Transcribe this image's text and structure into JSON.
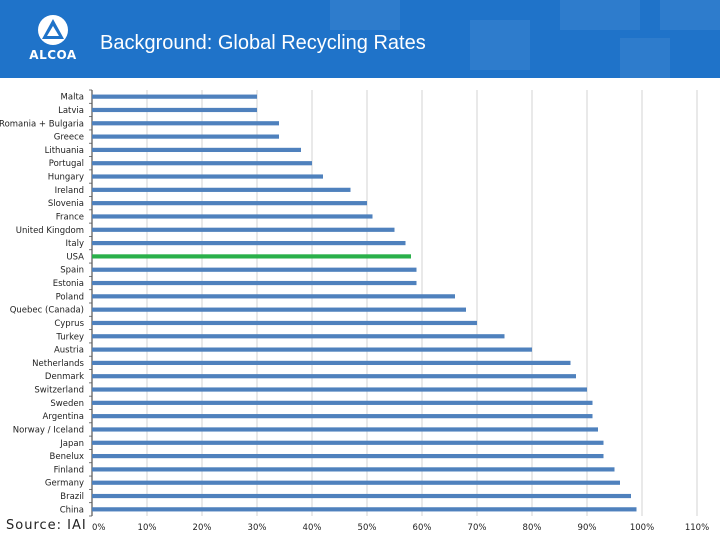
{
  "header": {
    "title": "Background:  Global Recycling Rates",
    "logo_text": "ALCOA",
    "background_color": "#1f73c9"
  },
  "footer": {
    "source_label": "Source: IAI"
  },
  "chart_data": {
    "type": "bar",
    "orientation": "horizontal",
    "categories": [
      "Malta",
      "Latvia",
      "Romania + Bulgaria",
      "Greece",
      "Lithuania",
      "Portugal",
      "Hungary",
      "Ireland",
      "Slovenia",
      "France",
      "United Kingdom",
      "Italy",
      "USA",
      "Spain",
      "Estonia",
      "Poland",
      "Quebec (Canada)",
      "Cyprus",
      "Turkey",
      "Austria",
      "Netherlands",
      "Denmark",
      "Switzerland",
      "Sweden",
      "Argentina",
      "Norway / Iceland",
      "Japan",
      "Benelux",
      "Finland",
      "Germany",
      "Brazil",
      "China"
    ],
    "values": [
      30,
      30,
      34,
      34,
      38,
      40,
      42,
      47,
      50,
      51,
      55,
      57,
      58,
      59,
      59,
      66,
      68,
      70,
      75,
      80,
      87,
      88,
      90,
      91,
      91,
      92,
      93,
      93,
      95,
      96,
      98,
      99
    ],
    "units": "%",
    "xlim": [
      0,
      110
    ],
    "xticks": [
      "0%",
      "10%",
      "20%",
      "30%",
      "40%",
      "50%",
      "60%",
      "70%",
      "80%",
      "90%",
      "100%",
      "110%"
    ],
    "xtick_values": [
      0,
      10,
      20,
      30,
      40,
      50,
      60,
      70,
      80,
      90,
      100,
      110
    ],
    "gridlines": "vertical",
    "bar_color": "#4f81bd",
    "highlight_category": "USA",
    "highlight_color": "#2ab04a"
  }
}
